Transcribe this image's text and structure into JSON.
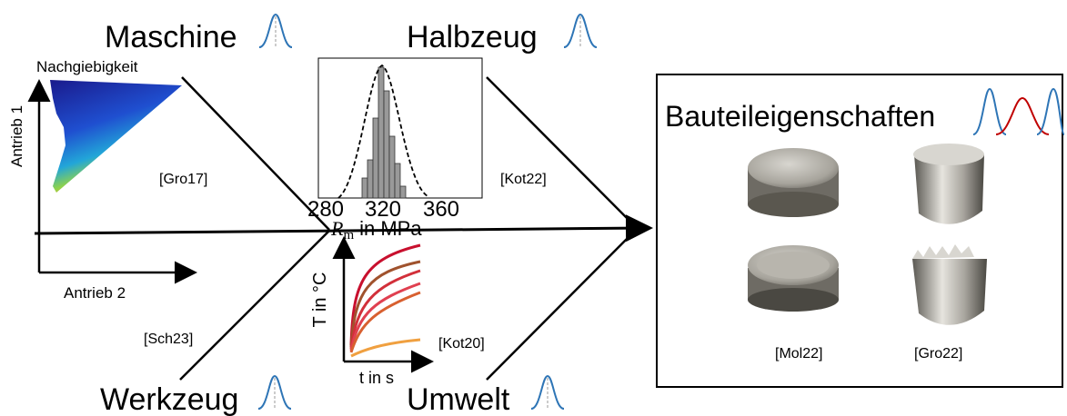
{
  "causes": [
    {
      "label": "Maschine"
    },
    {
      "label": "Halbzeug"
    },
    {
      "label": "Werkzeug"
    },
    {
      "label": "Umwelt"
    }
  ],
  "machine_plot": {
    "title": "Nachgiebigkeit",
    "y_label": "Antrieb 1",
    "x_label": "Antrieb 2",
    "source": "[Gro17]"
  },
  "material_plot": {
    "xticks": [
      "280",
      "320",
      "360"
    ],
    "x_label": {
      "symbol": "R",
      "subscript": "m",
      "text": "in MPa"
    },
    "source": "[Kot22]"
  },
  "tool_source": "[Sch23]",
  "environment_plot": {
    "y_label": "T in °C",
    "x_label": "t in s",
    "source": "[Kot20]"
  },
  "effect": {
    "label": "Bauteileigenschaften",
    "sources": [
      "[Mol22]",
      "[Gro22]"
    ]
  }
}
